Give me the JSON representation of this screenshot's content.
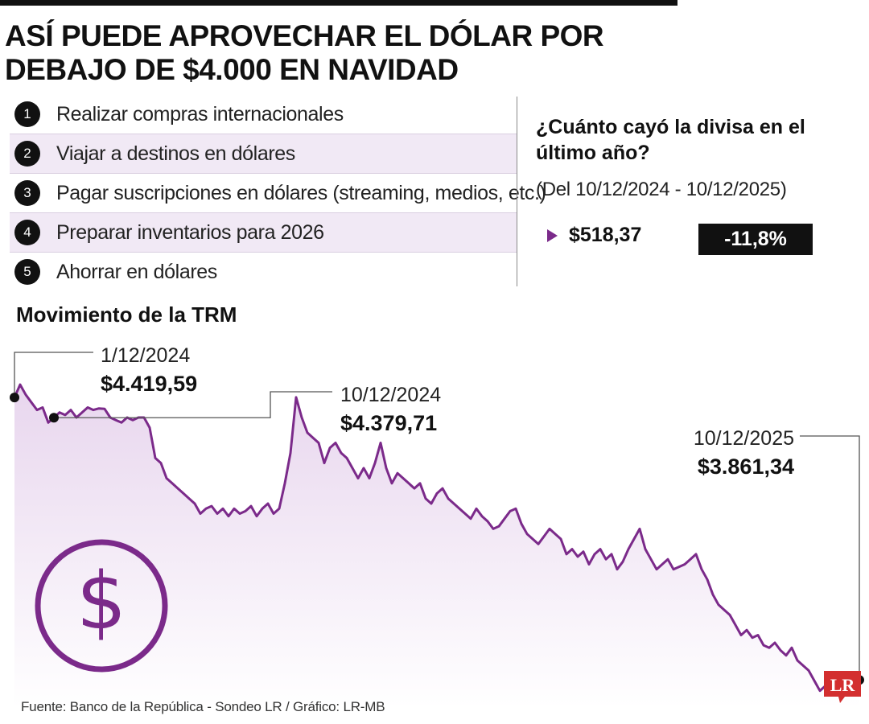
{
  "headline": "ASÍ PUEDE APROVECHAR EL DÓLAR POR DEBAJO DE $4.000 EN NAVIDAD",
  "tips": [
    {
      "num": "1",
      "text": "Realizar compras internacionales"
    },
    {
      "num": "2",
      "text": "Viajar a destinos en dólares"
    },
    {
      "num": "3",
      "text": "Pagar suscripciones en dólares (streaming, medios, etc.)"
    },
    {
      "num": "4",
      "text": "Preparar inventarios para 2026"
    },
    {
      "num": "5",
      "text": "Ahorrar en dólares"
    }
  ],
  "drop_box": {
    "question": "¿Cuánto cayó la divisa en el último año?",
    "period": "(Del 10/12/2024 - 10/12/2025)",
    "value": "$518,37",
    "percent": "-11,8%"
  },
  "chart_title": "Movimiento de la TRM",
  "source": "Fuente: Banco de la República - Sondeo LR / Gráfico: LR-MB",
  "logo_text": "LR",
  "colors": {
    "line": "#7b2a8a",
    "area_top": "#e8d6ee",
    "area_bottom": "#ffffff",
    "dark": "#111111"
  },
  "chart_data": {
    "type": "line",
    "title": "Movimiento de la TRM",
    "x_range": [
      "1/12/2024",
      "10/12/2025"
    ],
    "annotations": [
      {
        "date": "1/12/2024",
        "value": "$4.419,59",
        "y": 4419.59
      },
      {
        "date": "10/12/2024",
        "value": "$4.379,71",
        "y": 4379.71
      },
      {
        "date": "10/12/2025",
        "value": "$3.861,34",
        "y": 3861.34
      }
    ],
    "series": [
      {
        "values": [
          4419.59,
          4445,
          4425,
          4410,
          4395,
          4400,
          4370,
          4379.71,
          4390,
          4385,
          4395,
          4380,
          4390,
          4400,
          4395,
          4398,
          4397,
          4380,
          4375,
          4370,
          4380,
          4375,
          4380,
          4380,
          4360,
          4300,
          4290,
          4260,
          4250,
          4240,
          4230,
          4220,
          4210,
          4190,
          4200,
          4205,
          4190,
          4200,
          4185,
          4200,
          4190,
          4195,
          4205,
          4185,
          4200,
          4210,
          4190,
          4200,
          4250,
          4310,
          4420,
          4380,
          4350,
          4340,
          4330,
          4290,
          4320,
          4330,
          4310,
          4300,
          4280,
          4260,
          4280,
          4260,
          4290,
          4330,
          4280,
          4250,
          4270,
          4260,
          4250,
          4240,
          4250,
          4220,
          4210,
          4230,
          4240,
          4220,
          4210,
          4200,
          4190,
          4180,
          4200,
          4185,
          4175,
          4160,
          4165,
          4180,
          4195,
          4200,
          4170,
          4150,
          4140,
          4130,
          4145,
          4160,
          4150,
          4140,
          4110,
          4120,
          4105,
          4115,
          4090,
          4110,
          4120,
          4100,
          4110,
          4080,
          4095,
          4120,
          4140,
          4160,
          4120,
          4100,
          4080,
          4090,
          4100,
          4080,
          4085,
          4090,
          4100,
          4110,
          4080,
          4060,
          4030,
          4010,
          4000,
          3990,
          3970,
          3950,
          3960,
          3945,
          3950,
          3930,
          3925,
          3935,
          3920,
          3910,
          3925,
          3900,
          3890,
          3880,
          3860,
          3840,
          3850,
          3835,
          3860,
          3840,
          3850,
          3870,
          3861.34
        ]
      }
    ]
  }
}
